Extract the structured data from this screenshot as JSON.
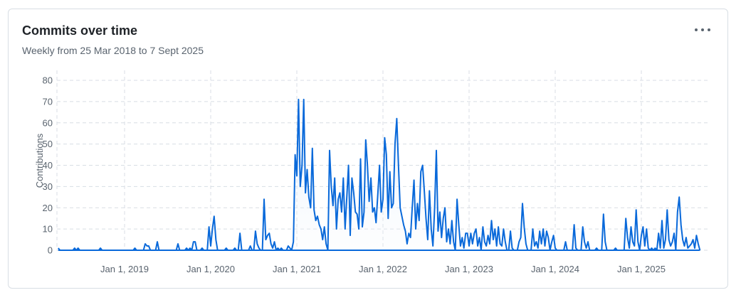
{
  "card": {
    "title": "Commits over time",
    "subtitle": "Weekly from 25 Mar 2018 to 7 Sept 2025",
    "menu_icon": "kebab-horizontal-icon"
  },
  "colors": {
    "line": "#0969da",
    "grid": "#d8dee4",
    "area_top": "#ddf4ff"
  },
  "chart_data": {
    "type": "area",
    "ylabel": "Contributions",
    "xlabel": "",
    "ylim": [
      0,
      80
    ],
    "yticks": [
      0,
      10,
      20,
      30,
      40,
      50,
      60,
      70,
      80
    ],
    "xticks": [
      {
        "label": "Jan 1, 2019",
        "value": 2019.0
      },
      {
        "label": "Jan 1, 2020",
        "value": 2020.0
      },
      {
        "label": "Jan 1, 2021",
        "value": 2021.0
      },
      {
        "label": "Jan 1, 2022",
        "value": 2022.0
      },
      {
        "label": "Jan 1, 2023",
        "value": 2023.0
      },
      {
        "label": "Jan 1, 2024",
        "value": 2024.0
      },
      {
        "label": "Jan 1, 2025",
        "value": 2025.0
      }
    ],
    "grid": true,
    "series": [
      {
        "points": [
          [
            2018.23,
            1
          ],
          [
            2018.25,
            0
          ],
          [
            2018.4,
            0
          ],
          [
            2018.42,
            1
          ],
          [
            2018.44,
            0
          ],
          [
            2018.46,
            1
          ],
          [
            2018.48,
            0
          ],
          [
            2018.7,
            0
          ],
          [
            2018.72,
            1
          ],
          [
            2018.74,
            0
          ],
          [
            2019.1,
            0
          ],
          [
            2019.12,
            1
          ],
          [
            2019.14,
            0
          ],
          [
            2019.22,
            0
          ],
          [
            2019.24,
            3
          ],
          [
            2019.26,
            2
          ],
          [
            2019.28,
            2
          ],
          [
            2019.3,
            0
          ],
          [
            2019.36,
            0
          ],
          [
            2019.38,
            4
          ],
          [
            2019.4,
            0
          ],
          [
            2019.6,
            0
          ],
          [
            2019.62,
            3
          ],
          [
            2019.64,
            0
          ],
          [
            2019.7,
            0
          ],
          [
            2019.72,
            1
          ],
          [
            2019.74,
            0
          ],
          [
            2019.76,
            1
          ],
          [
            2019.78,
            0
          ],
          [
            2019.8,
            4
          ],
          [
            2019.82,
            4
          ],
          [
            2019.84,
            0
          ],
          [
            2019.88,
            0
          ],
          [
            2019.9,
            1
          ],
          [
            2019.92,
            0
          ],
          [
            2019.96,
            0
          ],
          [
            2019.98,
            11
          ],
          [
            2020.0,
            2
          ],
          [
            2020.02,
            10
          ],
          [
            2020.04,
            16
          ],
          [
            2020.06,
            5
          ],
          [
            2020.08,
            0
          ],
          [
            2020.16,
            0
          ],
          [
            2020.18,
            1
          ],
          [
            2020.2,
            0
          ],
          [
            2020.26,
            0
          ],
          [
            2020.28,
            1
          ],
          [
            2020.3,
            0
          ],
          [
            2020.32,
            0
          ],
          [
            2020.34,
            8
          ],
          [
            2020.36,
            0
          ],
          [
            2020.44,
            0
          ],
          [
            2020.46,
            2
          ],
          [
            2020.48,
            0
          ],
          [
            2020.5,
            0
          ],
          [
            2020.52,
            9
          ],
          [
            2020.54,
            3
          ],
          [
            2020.56,
            1
          ],
          [
            2020.58,
            0
          ],
          [
            2020.6,
            0
          ],
          [
            2020.62,
            24
          ],
          [
            2020.64,
            5
          ],
          [
            2020.66,
            7
          ],
          [
            2020.68,
            8
          ],
          [
            2020.7,
            3
          ],
          [
            2020.72,
            1
          ],
          [
            2020.74,
            4
          ],
          [
            2020.76,
            0
          ],
          [
            2020.78,
            1
          ],
          [
            2020.8,
            0
          ],
          [
            2020.82,
            1
          ],
          [
            2020.84,
            0
          ],
          [
            2020.88,
            0
          ],
          [
            2020.9,
            2
          ],
          [
            2020.92,
            1
          ],
          [
            2020.94,
            0
          ],
          [
            2020.96,
            4
          ],
          [
            2020.98,
            45
          ],
          [
            2021.0,
            35
          ],
          [
            2021.02,
            71
          ],
          [
            2021.04,
            30
          ],
          [
            2021.06,
            40
          ],
          [
            2021.08,
            71
          ],
          [
            2021.1,
            27
          ],
          [
            2021.12,
            38
          ],
          [
            2021.14,
            25
          ],
          [
            2021.16,
            20
          ],
          [
            2021.18,
            48
          ],
          [
            2021.2,
            19
          ],
          [
            2021.22,
            14
          ],
          [
            2021.24,
            16
          ],
          [
            2021.26,
            12
          ],
          [
            2021.28,
            10
          ],
          [
            2021.3,
            5
          ],
          [
            2021.32,
            11
          ],
          [
            2021.34,
            3
          ],
          [
            2021.36,
            0
          ],
          [
            2021.38,
            47
          ],
          [
            2021.4,
            30
          ],
          [
            2021.42,
            21
          ],
          [
            2021.44,
            34
          ],
          [
            2021.46,
            10
          ],
          [
            2021.48,
            24
          ],
          [
            2021.5,
            27
          ],
          [
            2021.52,
            18
          ],
          [
            2021.54,
            34
          ],
          [
            2021.56,
            10
          ],
          [
            2021.58,
            25
          ],
          [
            2021.6,
            40
          ],
          [
            2021.62,
            7
          ],
          [
            2021.64,
            34
          ],
          [
            2021.66,
            27
          ],
          [
            2021.68,
            18
          ],
          [
            2021.7,
            17
          ],
          [
            2021.72,
            10
          ],
          [
            2021.74,
            43
          ],
          [
            2021.76,
            11
          ],
          [
            2021.78,
            18
          ],
          [
            2021.8,
            52
          ],
          [
            2021.82,
            40
          ],
          [
            2021.84,
            23
          ],
          [
            2021.86,
            34
          ],
          [
            2021.88,
            18
          ],
          [
            2021.9,
            20
          ],
          [
            2021.92,
            13
          ],
          [
            2021.94,
            26
          ],
          [
            2021.96,
            40
          ],
          [
            2021.98,
            18
          ],
          [
            2022.0,
            24
          ],
          [
            2022.02,
            53
          ],
          [
            2022.04,
            45
          ],
          [
            2022.06,
            15
          ],
          [
            2022.08,
            37
          ],
          [
            2022.1,
            20
          ],
          [
            2022.12,
            22
          ],
          [
            2022.14,
            50
          ],
          [
            2022.16,
            62
          ],
          [
            2022.18,
            40
          ],
          [
            2022.2,
            20
          ],
          [
            2022.22,
            16
          ],
          [
            2022.24,
            12
          ],
          [
            2022.26,
            9
          ],
          [
            2022.28,
            3
          ],
          [
            2022.3,
            8
          ],
          [
            2022.32,
            6
          ],
          [
            2022.34,
            20
          ],
          [
            2022.36,
            33
          ],
          [
            2022.38,
            10
          ],
          [
            2022.4,
            22
          ],
          [
            2022.42,
            14
          ],
          [
            2022.44,
            37
          ],
          [
            2022.46,
            40
          ],
          [
            2022.48,
            28
          ],
          [
            2022.5,
            15
          ],
          [
            2022.52,
            5
          ],
          [
            2022.54,
            28
          ],
          [
            2022.56,
            10
          ],
          [
            2022.58,
            2
          ],
          [
            2022.6,
            20
          ],
          [
            2022.62,
            47
          ],
          [
            2022.64,
            9
          ],
          [
            2022.66,
            18
          ],
          [
            2022.68,
            6
          ],
          [
            2022.7,
            15
          ],
          [
            2022.72,
            20
          ],
          [
            2022.74,
            4
          ],
          [
            2022.76,
            10
          ],
          [
            2022.78,
            3
          ],
          [
            2022.8,
            14
          ],
          [
            2022.82,
            4
          ],
          [
            2022.84,
            0
          ],
          [
            2022.86,
            24
          ],
          [
            2022.88,
            12
          ],
          [
            2022.9,
            2
          ],
          [
            2022.92,
            6
          ],
          [
            2022.94,
            1
          ],
          [
            2022.96,
            8
          ],
          [
            2022.98,
            8
          ],
          [
            2023.0,
            2
          ],
          [
            2023.02,
            8
          ],
          [
            2023.04,
            3
          ],
          [
            2023.06,
            8
          ],
          [
            2023.08,
            10
          ],
          [
            2023.1,
            2
          ],
          [
            2023.12,
            6
          ],
          [
            2023.14,
            0
          ],
          [
            2023.16,
            11
          ],
          [
            2023.18,
            4
          ],
          [
            2023.2,
            2
          ],
          [
            2023.22,
            7
          ],
          [
            2023.24,
            3
          ],
          [
            2023.26,
            14
          ],
          [
            2023.28,
            5
          ],
          [
            2023.3,
            10
          ],
          [
            2023.32,
            2
          ],
          [
            2023.34,
            11
          ],
          [
            2023.36,
            3
          ],
          [
            2023.38,
            2
          ],
          [
            2023.4,
            10
          ],
          [
            2023.42,
            4
          ],
          [
            2023.44,
            0
          ],
          [
            2023.46,
            0
          ],
          [
            2023.48,
            9
          ],
          [
            2023.5,
            1
          ],
          [
            2023.52,
            0
          ],
          [
            2023.56,
            0
          ],
          [
            2023.58,
            4
          ],
          [
            2023.6,
            6
          ],
          [
            2023.62,
            22
          ],
          [
            2023.64,
            11
          ],
          [
            2023.66,
            3
          ],
          [
            2023.68,
            0
          ],
          [
            2023.72,
            0
          ],
          [
            2023.74,
            10
          ],
          [
            2023.76,
            2
          ],
          [
            2023.78,
            4
          ],
          [
            2023.8,
            1
          ],
          [
            2023.82,
            9
          ],
          [
            2023.84,
            3
          ],
          [
            2023.86,
            10
          ],
          [
            2023.88,
            2
          ],
          [
            2023.9,
            9
          ],
          [
            2023.92,
            6
          ],
          [
            2023.94,
            0
          ],
          [
            2023.96,
            4
          ],
          [
            2023.98,
            7
          ],
          [
            2024.0,
            1
          ],
          [
            2024.02,
            0
          ],
          [
            2024.1,
            0
          ],
          [
            2024.12,
            4
          ],
          [
            2024.14,
            0
          ],
          [
            2024.2,
            0
          ],
          [
            2024.22,
            12
          ],
          [
            2024.24,
            1
          ],
          [
            2024.26,
            0
          ],
          [
            2024.3,
            0
          ],
          [
            2024.32,
            11
          ],
          [
            2024.34,
            4
          ],
          [
            2024.36,
            1
          ],
          [
            2024.38,
            4
          ],
          [
            2024.4,
            0
          ],
          [
            2024.46,
            0
          ],
          [
            2024.48,
            1
          ],
          [
            2024.5,
            0
          ],
          [
            2024.54,
            0
          ],
          [
            2024.56,
            17
          ],
          [
            2024.58,
            4
          ],
          [
            2024.6,
            0
          ],
          [
            2024.68,
            0
          ],
          [
            2024.7,
            1
          ],
          [
            2024.72,
            0
          ],
          [
            2024.8,
            0
          ],
          [
            2024.82,
            15
          ],
          [
            2024.84,
            6
          ],
          [
            2024.86,
            1
          ],
          [
            2024.88,
            11
          ],
          [
            2024.9,
            4
          ],
          [
            2024.92,
            2
          ],
          [
            2024.94,
            19
          ],
          [
            2024.96,
            4
          ],
          [
            2024.98,
            0
          ],
          [
            2025.0,
            7
          ],
          [
            2025.02,
            11
          ],
          [
            2025.04,
            2
          ],
          [
            2025.06,
            10
          ],
          [
            2025.08,
            1
          ],
          [
            2025.1,
            0
          ],
          [
            2025.12,
            1
          ],
          [
            2025.14,
            0
          ],
          [
            2025.16,
            1
          ],
          [
            2025.18,
            0
          ],
          [
            2025.2,
            8
          ],
          [
            2025.22,
            1
          ],
          [
            2025.24,
            14
          ],
          [
            2025.26,
            1
          ],
          [
            2025.28,
            5
          ],
          [
            2025.3,
            19
          ],
          [
            2025.32,
            5
          ],
          [
            2025.34,
            2
          ],
          [
            2025.36,
            4
          ],
          [
            2025.38,
            8
          ],
          [
            2025.4,
            0
          ],
          [
            2025.42,
            18
          ],
          [
            2025.44,
            25
          ],
          [
            2025.46,
            12
          ],
          [
            2025.48,
            5
          ],
          [
            2025.5,
            2
          ],
          [
            2025.52,
            6
          ],
          [
            2025.54,
            1
          ],
          [
            2025.56,
            2
          ],
          [
            2025.58,
            3
          ],
          [
            2025.6,
            5
          ],
          [
            2025.62,
            1
          ],
          [
            2025.64,
            7
          ],
          [
            2025.66,
            3
          ],
          [
            2025.68,
            0
          ]
        ]
      }
    ]
  }
}
